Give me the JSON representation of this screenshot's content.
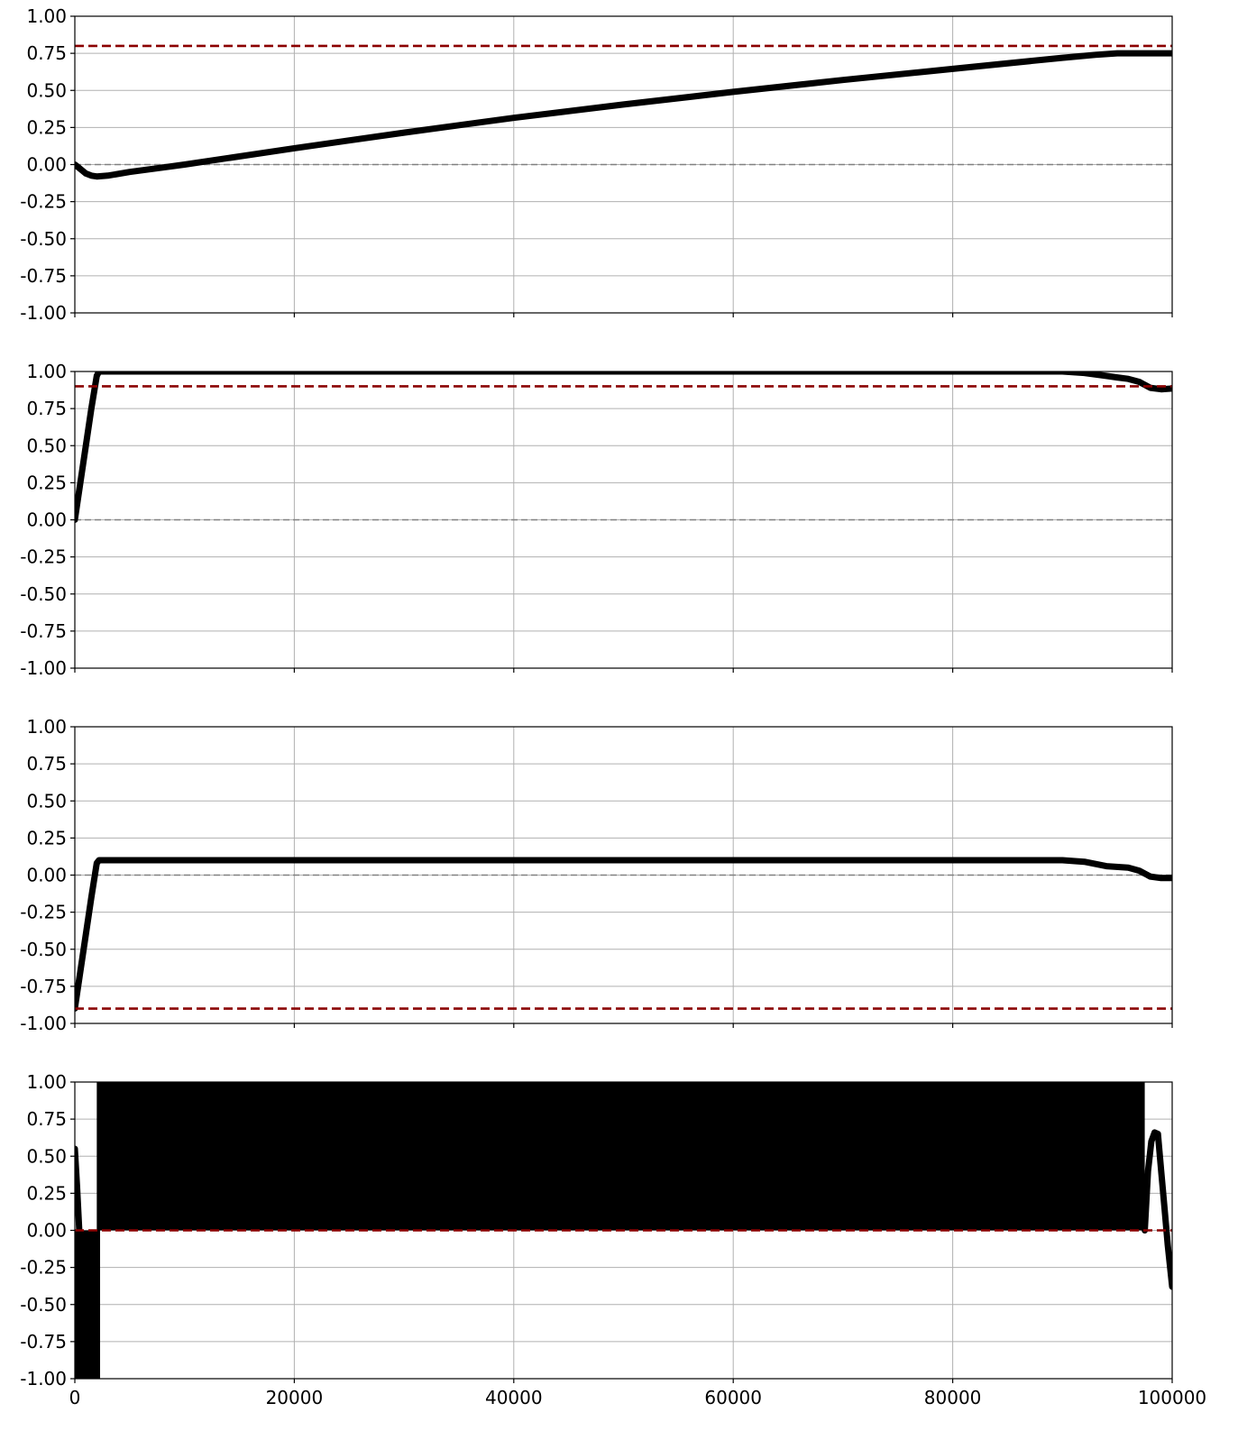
{
  "colors": {
    "series": "#000000",
    "target_line": "#8b0000",
    "zero_line": "#808080",
    "grid": "#b0b0b0",
    "axes": "#000000"
  },
  "chart_data": [
    {
      "type": "line",
      "xlim": [
        0,
        100000
      ],
      "ylim": [
        -1.0,
        1.0
      ],
      "grid": true,
      "yticks": [
        "-1.00",
        "-0.75",
        "-0.50",
        "-0.25",
        "0.00",
        "0.25",
        "0.50",
        "0.75",
        "1.00"
      ],
      "xticks": [
        "0",
        "20000",
        "40000",
        "60000",
        "80000",
        "100000"
      ],
      "show_xtick_labels": false,
      "reference_lines": [
        {
          "y": 0.8,
          "style": "target"
        },
        {
          "y": 0.0,
          "style": "zero"
        }
      ],
      "series": [
        {
          "x": [
            0,
            500,
            1000,
            1500,
            2000,
            3000,
            5000,
            8000,
            10000,
            20000,
            30000,
            40000,
            50000,
            60000,
            70000,
            80000,
            90000,
            93000,
            95000,
            100000
          ],
          "y": [
            0.0,
            -0.03,
            -0.06,
            -0.075,
            -0.08,
            -0.075,
            -0.05,
            -0.02,
            0.0,
            0.11,
            0.215,
            0.315,
            0.405,
            0.49,
            0.57,
            0.645,
            0.72,
            0.74,
            0.75,
            0.75
          ]
        }
      ]
    },
    {
      "type": "line",
      "xlim": [
        0,
        100000
      ],
      "ylim": [
        -1.0,
        1.0
      ],
      "grid": true,
      "yticks": [
        "-1.00",
        "-0.75",
        "-0.50",
        "-0.25",
        "0.00",
        "0.25",
        "0.50",
        "0.75",
        "1.00"
      ],
      "xticks": [
        "0",
        "20000",
        "40000",
        "60000",
        "80000",
        "100000"
      ],
      "show_xtick_labels": false,
      "reference_lines": [
        {
          "y": 0.9,
          "style": "target"
        },
        {
          "y": 0.0,
          "style": "zero"
        }
      ],
      "series": [
        {
          "x": [
            0,
            500,
            1000,
            1500,
            2000,
            2200,
            10000,
            30000,
            50000,
            70000,
            90000,
            92000,
            94000,
            95000,
            96000,
            97000,
            98000,
            99000,
            100000
          ],
          "y": [
            0.0,
            0.25,
            0.5,
            0.75,
            0.97,
            1.0,
            1.0,
            1.0,
            1.0,
            1.0,
            1.0,
            0.99,
            0.97,
            0.96,
            0.95,
            0.93,
            0.89,
            0.88,
            0.885
          ]
        }
      ]
    },
    {
      "type": "line",
      "xlim": [
        0,
        100000
      ],
      "ylim": [
        -1.0,
        1.0
      ],
      "grid": true,
      "yticks": [
        "-1.00",
        "-0.75",
        "-0.50",
        "-0.25",
        "0.00",
        "0.25",
        "0.50",
        "0.75",
        "1.00"
      ],
      "xticks": [
        "0",
        "20000",
        "40000",
        "60000",
        "80000",
        "100000"
      ],
      "show_xtick_labels": false,
      "reference_lines": [
        {
          "y": -0.9,
          "style": "target"
        },
        {
          "y": 0.0,
          "style": "zero"
        }
      ],
      "series": [
        {
          "x": [
            0,
            500,
            1000,
            1500,
            2000,
            2200,
            10000,
            30000,
            50000,
            70000,
            90000,
            92000,
            94000,
            96000,
            97000,
            98000,
            99000,
            100000
          ],
          "y": [
            -0.9,
            -0.65,
            -0.4,
            -0.15,
            0.08,
            0.1,
            0.1,
            0.1,
            0.1,
            0.1,
            0.1,
            0.09,
            0.06,
            0.05,
            0.03,
            -0.01,
            -0.02,
            -0.02
          ]
        }
      ]
    },
    {
      "type": "area",
      "xlim": [
        0,
        100000
      ],
      "ylim": [
        -1.0,
        1.0
      ],
      "grid": true,
      "yticks": [
        "-1.00",
        "-0.75",
        "-0.50",
        "-0.25",
        "0.00",
        "0.25",
        "0.50",
        "0.75",
        "1.00"
      ],
      "xticks": [
        "0",
        "20000",
        "40000",
        "60000",
        "80000",
        "100000"
      ],
      "show_xtick_labels": true,
      "reference_lines": [
        {
          "y": 0.0,
          "style": "target"
        }
      ],
      "bands": [
        {
          "x": [
            0,
            2300
          ],
          "y": [
            -1.0,
            0.0
          ]
        },
        {
          "x": [
            2000,
            97500
          ],
          "y": [
            0.0,
            1.0
          ]
        }
      ],
      "series": [
        {
          "x": [
            0,
            200,
            400
          ],
          "y": [
            0.55,
            0.3,
            0.0
          ]
        },
        {
          "x": [
            97500,
            97800,
            98100,
            98400,
            98700,
            99000,
            99300,
            99600,
            100000
          ],
          "y": [
            0.0,
            0.4,
            0.6,
            0.66,
            0.65,
            0.4,
            0.15,
            -0.1,
            -0.38
          ]
        }
      ]
    }
  ]
}
